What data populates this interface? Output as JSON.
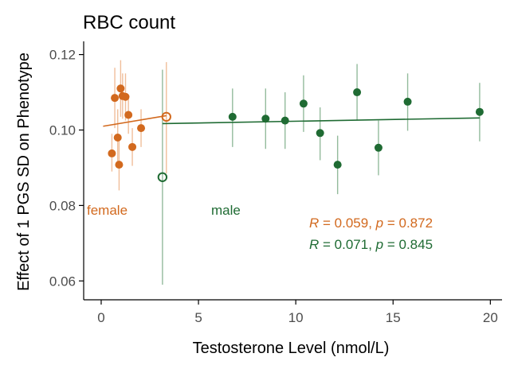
{
  "chart_data": {
    "type": "scatter",
    "title": "RBC count",
    "xlabel": "Testosterone Level (nmol/L)",
    "ylabel": "Effect of 1 PGS SD on Phenotype",
    "xlim": [
      -0.9,
      20.6
    ],
    "ylim": [
      0.055,
      0.1235
    ],
    "xticks": [
      0,
      5,
      10,
      15,
      20
    ],
    "yticks": [
      0.06,
      0.08,
      0.1,
      0.12
    ],
    "grid": false,
    "series": [
      {
        "name": "female",
        "color": "#D2691E",
        "errorbar_color": "#F0BE9A",
        "points": [
          {
            "x": 0.55,
            "y": 0.0938,
            "lo": 0.089,
            "hi": 0.099
          },
          {
            "x": 0.7,
            "y": 0.1085,
            "lo": 0.1005,
            "hi": 0.1165
          },
          {
            "x": 0.85,
            "y": 0.098,
            "lo": 0.0905,
            "hi": 0.1055
          },
          {
            "x": 0.92,
            "y": 0.0908,
            "lo": 0.084,
            "hi": 0.0975
          },
          {
            "x": 1.0,
            "y": 0.111,
            "lo": 0.1035,
            "hi": 0.1185
          },
          {
            "x": 1.1,
            "y": 0.109,
            "lo": 0.103,
            "hi": 0.115
          },
          {
            "x": 1.25,
            "y": 0.1088,
            "lo": 0.1025,
            "hi": 0.115
          },
          {
            "x": 1.4,
            "y": 0.104,
            "lo": 0.099,
            "hi": 0.109
          },
          {
            "x": 1.6,
            "y": 0.0955,
            "lo": 0.0905,
            "hi": 0.1005
          },
          {
            "x": 2.05,
            "y": 0.1005,
            "lo": 0.0955,
            "hi": 0.1055
          }
        ],
        "open_point": {
          "x": 3.35,
          "y": 0.1035,
          "lo": 0.0885,
          "hi": 0.118
        },
        "fit": {
          "x0": 0.1,
          "y0": 0.101,
          "x1": 3.35,
          "y1": 0.1038
        },
        "label": "female",
        "stat": {
          "R": "0.059",
          "p": "0.872"
        }
      },
      {
        "name": "male",
        "color": "#1F6B33",
        "errorbar_color": "#93BB9C",
        "points": [
          {
            "x": 6.75,
            "y": 0.1035,
            "lo": 0.0955,
            "hi": 0.111
          },
          {
            "x": 8.45,
            "y": 0.103,
            "lo": 0.095,
            "hi": 0.111
          },
          {
            "x": 9.45,
            "y": 0.1025,
            "lo": 0.095,
            "hi": 0.11
          },
          {
            "x": 10.4,
            "y": 0.107,
            "lo": 0.0995,
            "hi": 0.1145
          },
          {
            "x": 11.25,
            "y": 0.0992,
            "lo": 0.092,
            "hi": 0.106
          },
          {
            "x": 12.15,
            "y": 0.0908,
            "lo": 0.083,
            "hi": 0.0985
          },
          {
            "x": 13.15,
            "y": 0.11,
            "lo": 0.1025,
            "hi": 0.1175
          },
          {
            "x": 14.25,
            "y": 0.0953,
            "lo": 0.088,
            "hi": 0.1025
          },
          {
            "x": 15.75,
            "y": 0.1075,
            "lo": 0.0998,
            "hi": 0.115
          },
          {
            "x": 19.45,
            "y": 0.1048,
            "lo": 0.097,
            "hi": 0.1125
          }
        ],
        "open_point": {
          "x": 3.15,
          "y": 0.0875,
          "lo": 0.059,
          "hi": 0.116
        },
        "fit": {
          "x0": 3.15,
          "y0": 0.1017,
          "x1": 19.45,
          "y1": 0.1032
        },
        "label": "male",
        "stat": {
          "R": "0.071",
          "p": "0.845"
        }
      }
    ],
    "stat_prefix_R": "R",
    "stat_prefix_p": "p",
    "stat_eq": " = ",
    "stat_sep": ", "
  }
}
